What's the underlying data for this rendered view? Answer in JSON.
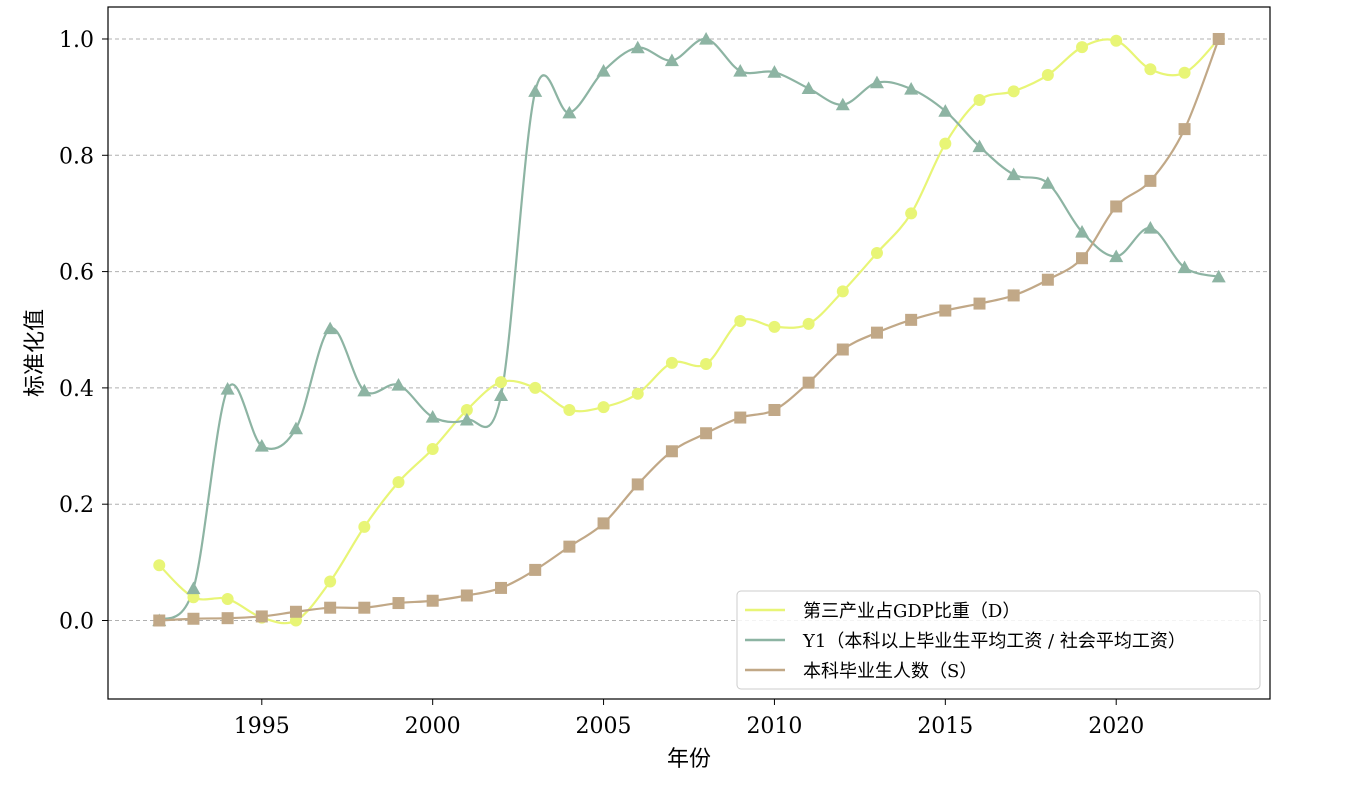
{
  "chart_data": {
    "type": "line",
    "xlabel": "年份",
    "ylabel": "标准化值",
    "xlim": [
      1990.5,
      1994.5
    ],
    "ylim": [
      -0.135,
      1.055
    ],
    "x_ticks": [
      1995,
      2000,
      2005,
      2010,
      2015,
      2020
    ],
    "x_tick_labels": [
      "1995",
      "2000",
      "2005",
      "2010",
      "2015",
      "2020"
    ],
    "y_ticks": [
      0.0,
      0.2,
      0.4,
      0.6,
      0.8,
      1.0
    ],
    "y_tick_labels": [
      "0.0",
      "0.2",
      "0.4",
      "0.6",
      "0.8",
      "1.0"
    ],
    "grid": "horizontal dashed",
    "legend_position": "lower-right",
    "x": [
      1992,
      1993,
      1994,
      1995,
      1996,
      1997,
      1998,
      1999,
      2000,
      2001,
      2002,
      2003,
      2004,
      2005,
      2006,
      2007,
      2008,
      2009,
      2010,
      2011,
      2012,
      2013,
      2014,
      2015,
      2016,
      2017,
      2018,
      2019,
      2020,
      2021,
      2022,
      2023
    ],
    "series": [
      {
        "name": "第三产业占GDP比重（D）",
        "color": "#e8f576",
        "marker": "circle",
        "values": [
          0.095,
          0.04,
          0.037,
          0.005,
          0.0,
          0.067,
          0.161,
          0.238,
          0.295,
          0.362,
          0.41,
          0.4,
          0.362,
          0.367,
          0.39,
          0.443,
          0.441,
          0.515,
          0.505,
          0.51,
          0.566,
          0.632,
          0.7,
          0.82,
          0.895,
          0.91,
          0.938,
          0.986,
          0.997,
          0.948,
          0.942,
          1.0
        ]
      },
      {
        "name": "Y1（本科以上毕业生平均工资 / 社会平均工资）",
        "color": "#8db4a3",
        "marker": "triangle",
        "values": [
          0.0,
          0.055,
          0.398,
          0.3,
          0.33,
          0.502,
          0.395,
          0.405,
          0.35,
          0.345,
          0.387,
          0.91,
          0.873,
          0.945,
          0.985,
          0.963,
          1.0,
          0.945,
          0.943,
          0.915,
          0.887,
          0.925,
          0.914,
          0.876,
          0.815,
          0.767,
          0.752,
          0.668,
          0.626,
          0.675,
          0.607,
          0.591
        ]
      },
      {
        "name": "本科毕业生人数（S）",
        "color": "#c1a887",
        "marker": "square",
        "values": [
          0.0,
          0.003,
          0.004,
          0.007,
          0.015,
          0.022,
          0.022,
          0.03,
          0.034,
          0.043,
          0.056,
          0.087,
          0.127,
          0.167,
          0.234,
          0.291,
          0.322,
          0.349,
          0.362,
          0.409,
          0.466,
          0.495,
          0.517,
          0.533,
          0.545,
          0.559,
          0.586,
          0.623,
          0.712,
          0.756,
          0.845,
          1.0
        ]
      }
    ]
  }
}
